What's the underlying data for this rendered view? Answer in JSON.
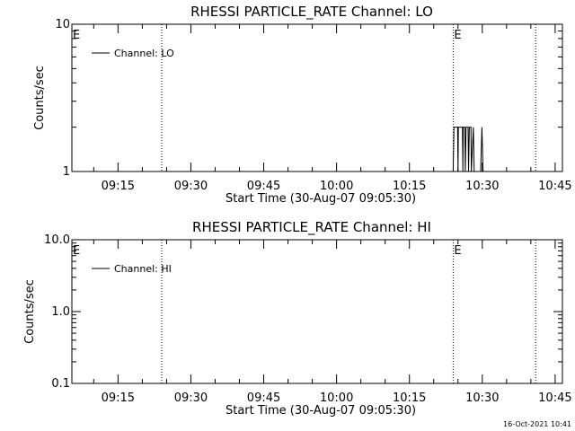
{
  "chart_data": [
    {
      "type": "line",
      "title": "RHESSI PARTICLE_RATE Channel: LO",
      "xlabel": "Start Time (30-Aug-07 09:05:30)",
      "ylabel": "Counts/sec",
      "y_scale": "log",
      "ylim": [
        1,
        10
      ],
      "xlim": [
        "09:05:30",
        "10:46:30"
      ],
      "y_ticks": [
        {
          "value": 1,
          "label": "1"
        },
        {
          "value": 10,
          "label": "10"
        }
      ],
      "x_ticks": [
        "09:15",
        "09:30",
        "09:45",
        "10:00",
        "10:15",
        "10:30",
        "10:45"
      ],
      "legend": {
        "placement": "top-left",
        "entries": [
          "Channel: LO"
        ]
      },
      "markers": [
        {
          "time": "09:05:30",
          "label": "E"
        },
        {
          "time": "09:24:00",
          "label": ""
        },
        {
          "time": "10:24:00",
          "label": "E"
        },
        {
          "time": "10:41:00",
          "label": ""
        }
      ],
      "series": [
        {
          "name": "Channel: LO",
          "points": [
            [
              "10:24:00",
              1
            ],
            [
              "10:24:10",
              2
            ],
            [
              "10:24:55",
              2
            ],
            [
              "10:25:00",
              1
            ],
            [
              "10:25:05",
              2
            ],
            [
              "10:25:55",
              2
            ],
            [
              "10:26:00",
              1
            ],
            [
              "10:26:05",
              2
            ],
            [
              "10:26:25",
              2
            ],
            [
              "10:26:30",
              1
            ],
            [
              "10:26:40",
              2
            ],
            [
              "10:27:05",
              2
            ],
            [
              "10:27:10",
              1
            ],
            [
              "10:27:20",
              2
            ],
            [
              "10:27:40",
              2
            ],
            [
              "10:27:45",
              1
            ],
            [
              "10:28:10",
              2
            ],
            [
              "10:28:20",
              1
            ],
            [
              "10:29:40",
              1
            ],
            [
              "10:29:55",
              2
            ],
            [
              "10:30:10",
              1
            ]
          ]
        }
      ]
    },
    {
      "type": "line",
      "title": "RHESSI PARTICLE_RATE Channel: HI",
      "xlabel": "Start Time (30-Aug-07 09:05:30)",
      "ylabel": "Counts/sec",
      "y_scale": "log",
      "ylim": [
        0.1,
        10
      ],
      "xlim": [
        "09:05:30",
        "10:46:30"
      ],
      "y_ticks": [
        {
          "value": 0.1,
          "label": "0.1"
        },
        {
          "value": 1,
          "label": "1.0"
        },
        {
          "value": 10,
          "label": "10.0"
        }
      ],
      "x_ticks": [
        "09:15",
        "09:30",
        "09:45",
        "10:00",
        "10:15",
        "10:30",
        "10:45"
      ],
      "legend": {
        "placement": "top-left",
        "entries": [
          "Channel: HI"
        ]
      },
      "markers": [
        {
          "time": "09:05:30",
          "label": "E"
        },
        {
          "time": "09:24:00",
          "label": ""
        },
        {
          "time": "10:24:00",
          "label": "E"
        },
        {
          "time": "10:41:00",
          "label": ""
        }
      ],
      "series": [
        {
          "name": "Channel: HI",
          "points": []
        }
      ]
    }
  ],
  "footer": {
    "timestamp": "16-Oct-2021 10:41"
  }
}
